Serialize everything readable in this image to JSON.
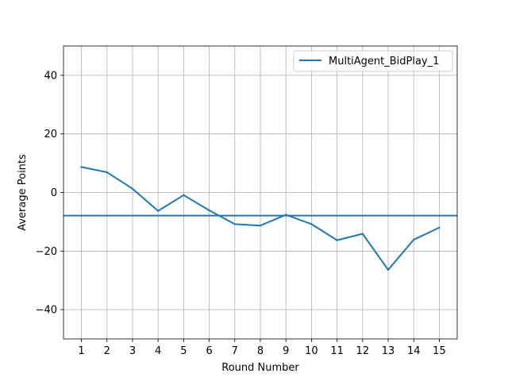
{
  "chart_data": {
    "type": "line",
    "xlabel": "Round Number",
    "ylabel": "Average Points",
    "x": [
      1,
      2,
      3,
      4,
      5,
      6,
      7,
      8,
      9,
      10,
      11,
      12,
      13,
      14,
      15
    ],
    "xticks": [
      "1",
      "2",
      "3",
      "4",
      "5",
      "6",
      "7",
      "8",
      "9",
      "10",
      "11",
      "12",
      "13",
      "14",
      "15"
    ],
    "xlim": [
      0.3,
      15.7
    ],
    "ylim": [
      -50,
      50
    ],
    "yticks": [
      -40,
      -20,
      0,
      20,
      40
    ],
    "ytick_labels": [
      "−40",
      "−20",
      "0",
      "20",
      "40"
    ],
    "grid": true,
    "legend_position": "top-right",
    "series": [
      {
        "name": "MultiAgent_BidPlay_1",
        "color": "#1f77b4",
        "values": [
          8.7,
          6.9,
          1.3,
          -6.3,
          -0.9,
          -6.1,
          -10.8,
          -11.3,
          -7.6,
          -10.8,
          -16.3,
          -14.1,
          -26.4,
          -16.1,
          -12.0
        ]
      }
    ],
    "reference_line": {
      "y": -7.9,
      "color": "#1f77b4"
    }
  }
}
